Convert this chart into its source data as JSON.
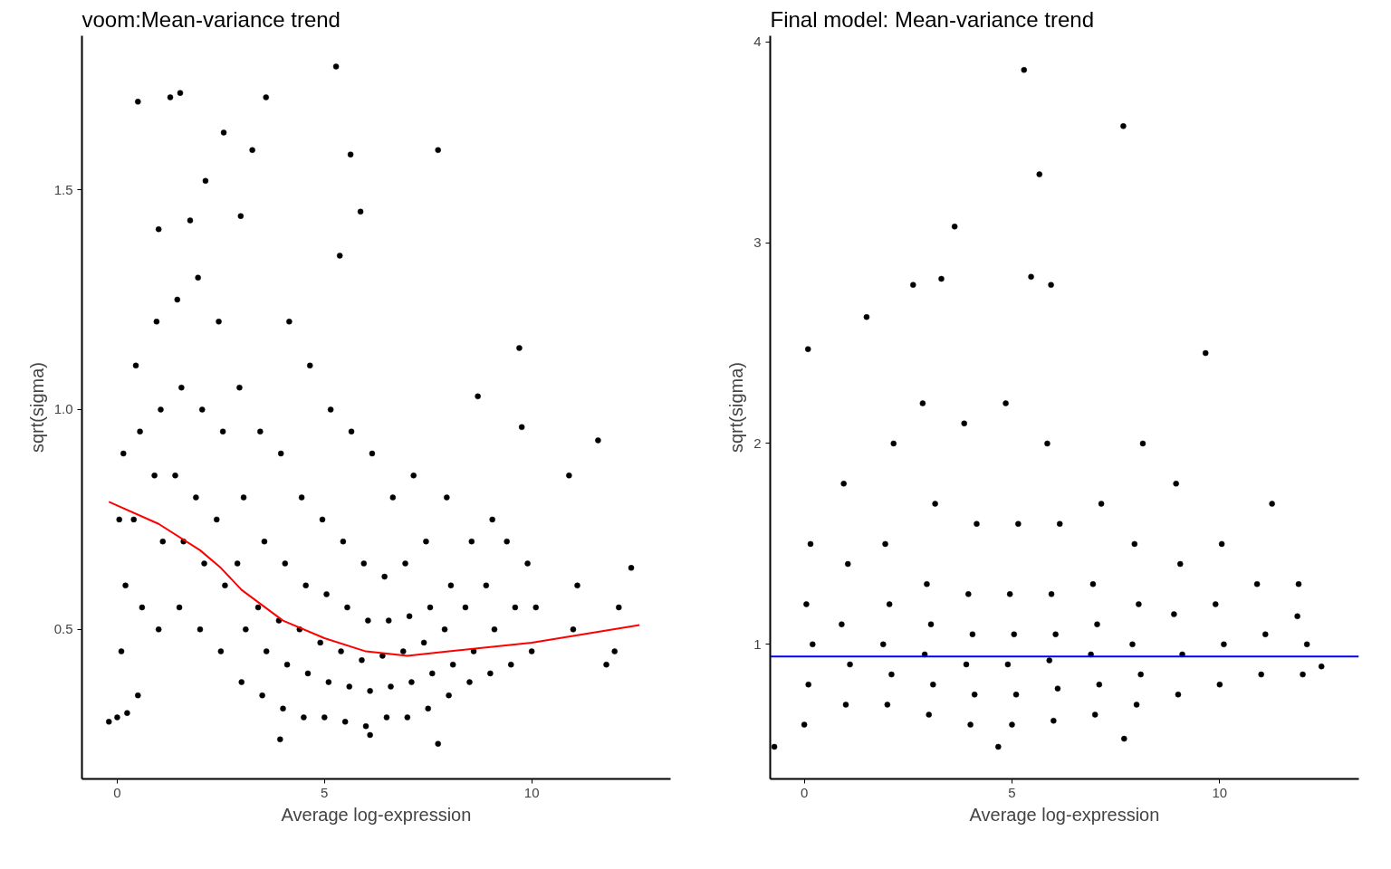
{
  "chart_data": [
    {
      "type": "scatter",
      "title": "voom:Mean-variance trend",
      "xlabel": "Average log-expression",
      "ylabel": "sqrt(sigma)",
      "xlim": [
        -0.85,
        13.35
      ],
      "ylim": [
        0.16,
        1.85
      ],
      "xticks": [
        0,
        5,
        10
      ],
      "yticks": [
        {
          "value": 0.5,
          "label": "0.5"
        },
        {
          "value": 1.0,
          "label": "1.0"
        },
        {
          "value": 1.5,
          "label": "1.5"
        }
      ],
      "grid": false,
      "series": [
        {
          "marker": "circle",
          "color": "#000000",
          "x": [
            0.5,
            1.28,
            1.52,
            3.59,
            5.28,
            7.74,
            2.57,
            3.26,
            5.63,
            5.87,
            2.13,
            2.98,
            5.37,
            1.0,
            1.76,
            9.7,
            11.6,
            8.7,
            9.76,
            10.9,
            12.4,
            11.8,
            -0.2,
            0.24,
            3.93,
            7.74,
            6.1,
            0,
            0.1,
            0.2,
            0.05,
            0.15,
            0.5,
            0.6,
            0.4,
            0.55,
            0.45,
            1,
            1.1,
            0.9,
            1.05,
            0.95,
            1.5,
            1.6,
            1.4,
            1.55,
            1.45,
            2,
            2.1,
            1.9,
            2.05,
            1.95,
            2.5,
            2.6,
            2.4,
            2.55,
            2.45,
            3,
            3.1,
            2.9,
            3.05,
            2.95,
            3.5,
            3.6,
            3.4,
            3.55,
            3.45,
            4,
            4.1,
            3.9,
            4.05,
            3.95,
            4.15,
            4.5,
            4.6,
            4.4,
            4.55,
            4.45,
            4.65,
            5,
            5.1,
            4.9,
            5.05,
            4.95,
            5.15,
            5.5,
            5.6,
            5.4,
            5.55,
            5.45,
            5.65,
            6,
            6.1,
            5.9,
            6.05,
            5.95,
            6.15,
            6.5,
            6.6,
            6.4,
            6.55,
            6.45,
            6.65,
            7,
            7.1,
            6.9,
            7.05,
            6.95,
            7.15,
            7.5,
            7.6,
            7.4,
            7.55,
            7.45,
            8,
            8.1,
            7.9,
            8.05,
            7.95,
            8.5,
            8.6,
            8.4,
            8.55,
            9,
            9.1,
            8.9,
            9.05,
            9.5,
            9.6,
            9.4,
            10,
            10.1,
            9.9,
            11,
            11.1,
            12,
            12.1
          ],
          "values": [
            1.7,
            1.71,
            1.72,
            1.71,
            1.78,
            1.59,
            1.63,
            1.59,
            1.58,
            1.45,
            1.52,
            1.44,
            1.35,
            1.41,
            1.43,
            1.14,
            0.93,
            1.03,
            0.96,
            0.85,
            0.64,
            0.42,
            0.29,
            0.31,
            0.25,
            0.24,
            0.26,
            0.3,
            0.45,
            0.6,
            0.75,
            0.9,
            0.35,
            0.55,
            0.75,
            0.95,
            1.1,
            0.5,
            0.7,
            0.85,
            1.0,
            1.2,
            0.55,
            0.7,
            0.85,
            1.05,
            1.25,
            0.5,
            0.65,
            0.8,
            1.0,
            1.3,
            0.45,
            0.6,
            0.75,
            0.95,
            1.2,
            0.38,
            0.5,
            0.65,
            0.8,
            1.05,
            0.35,
            0.45,
            0.55,
            0.7,
            0.95,
            0.32,
            0.42,
            0.52,
            0.65,
            0.9,
            1.2,
            0.3,
            0.4,
            0.5,
            0.6,
            0.8,
            1.1,
            0.3,
            0.38,
            0.47,
            0.58,
            0.75,
            1.0,
            0.29,
            0.37,
            0.45,
            0.55,
            0.7,
            0.95,
            0.28,
            0.36,
            0.43,
            0.52,
            0.65,
            0.9,
            0.3,
            0.37,
            0.44,
            0.52,
            0.62,
            0.8,
            0.3,
            0.38,
            0.45,
            0.53,
            0.65,
            0.85,
            0.32,
            0.4,
            0.47,
            0.55,
            0.7,
            0.35,
            0.42,
            0.5,
            0.6,
            0.8,
            0.38,
            0.45,
            0.55,
            0.7,
            0.4,
            0.5,
            0.6,
            0.75,
            0.42,
            0.55,
            0.7,
            0.45,
            0.55,
            0.65,
            0.5,
            0.6,
            0.45,
            0.55
          ]
        },
        {
          "type": "line",
          "color": "#ff0000",
          "x": [
            -0.2,
            1,
            2,
            2.5,
            3,
            4,
            5,
            6,
            7,
            8,
            10,
            12.6
          ],
          "values": [
            0.79,
            0.74,
            0.68,
            0.64,
            0.59,
            0.52,
            0.48,
            0.45,
            0.44,
            0.45,
            0.47,
            0.51
          ]
        }
      ]
    },
    {
      "type": "scatter",
      "title": "Final model: Mean-variance trend",
      "xlabel": "Average log-expression",
      "ylabel": "sqrt(sigma)",
      "xlim": [
        -0.82,
        13.35
      ],
      "ylim": [
        0.33,
        4.03
      ],
      "xticks": [
        0,
        5,
        10
      ],
      "yticks": [
        1,
        2,
        3,
        4
      ],
      "grid": false,
      "ref_lines": [
        {
          "axis": "y",
          "value": 0.94,
          "color": "#0000ff"
        }
      ],
      "series": [
        {
          "marker": "circle",
          "color": "#000000",
          "x": [
            5.29,
            7.68,
            5.66,
            3.62,
            5.46,
            5.94,
            2.62,
            3.3,
            9.66,
            1.5,
            0.09,
            11.87,
            -0.72,
            4.67,
            7.7,
            12.45,
            11.26,
            0,
            0.1,
            0.2,
            0.05,
            0.15,
            1,
            1.1,
            0.9,
            1.05,
            0.95,
            2,
            2.1,
            1.9,
            2.05,
            1.95,
            2.15,
            3,
            3.1,
            2.9,
            3.05,
            2.95,
            3.15,
            2.85,
            4,
            4.1,
            3.9,
            4.05,
            3.95,
            4.15,
            3.85,
            5,
            5.1,
            4.9,
            5.05,
            4.95,
            5.15,
            4.85,
            6,
            6.1,
            5.9,
            6.05,
            5.95,
            6.15,
            5.85,
            7,
            7.1,
            6.9,
            7.05,
            6.95,
            7.15,
            8,
            8.1,
            7.9,
            8.05,
            7.95,
            8.15,
            9,
            9.1,
            8.9,
            9.05,
            8.95,
            10,
            10.1,
            9.9,
            10.05,
            11,
            11.1,
            10.9,
            12,
            12.1,
            11.9
          ],
          "values": [
            3.86,
            3.58,
            3.34,
            3.08,
            2.83,
            2.79,
            2.79,
            2.82,
            2.45,
            2.63,
            2.47,
            1.14,
            0.49,
            0.49,
            0.53,
            0.89,
            1.7,
            0.6,
            0.8,
            1.0,
            1.2,
            1.5,
            0.7,
            0.9,
            1.1,
            1.4,
            1.8,
            0.7,
            0.85,
            1.0,
            1.2,
            1.5,
            2.0,
            0.65,
            0.8,
            0.95,
            1.1,
            1.3,
            1.7,
            2.2,
            0.6,
            0.75,
            0.9,
            1.05,
            1.25,
            1.6,
            2.1,
            0.6,
            0.75,
            0.9,
            1.05,
            1.25,
            1.6,
            2.2,
            0.62,
            0.78,
            0.92,
            1.05,
            1.25,
            1.6,
            2.0,
            0.65,
            0.8,
            0.95,
            1.1,
            1.3,
            1.7,
            0.7,
            0.85,
            1.0,
            1.2,
            1.5,
            2.0,
            0.75,
            0.95,
            1.15,
            1.4,
            1.8,
            0.8,
            1.0,
            1.2,
            1.5,
            0.85,
            1.05,
            1.3,
            0.85,
            1.0,
            1.3
          ]
        }
      ]
    }
  ]
}
